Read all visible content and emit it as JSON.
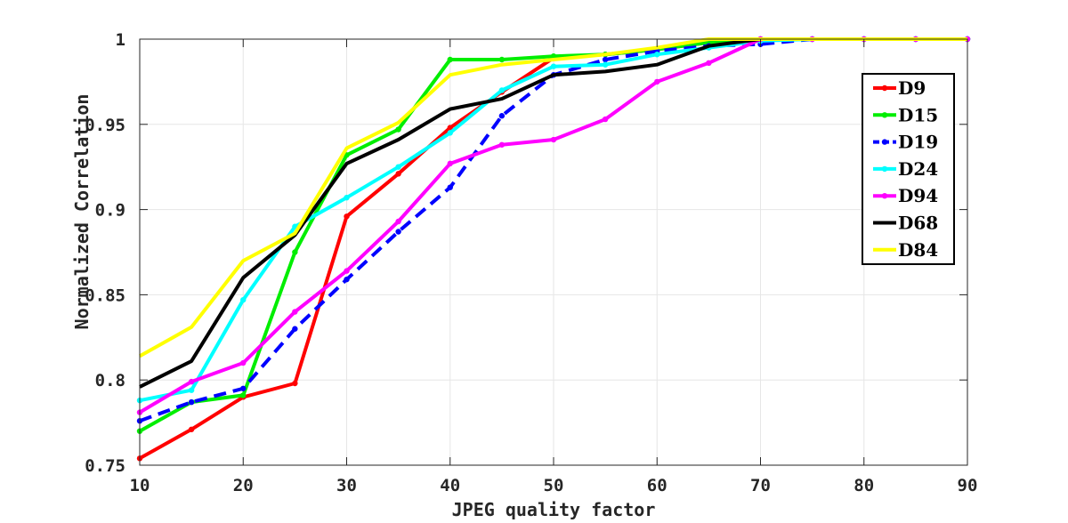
{
  "chart_data": {
    "type": "line",
    "title": "",
    "xlabel": "JPEG quality factor",
    "ylabel": "Normalized Correlation",
    "xlim": [
      10,
      90
    ],
    "ylim": [
      0.75,
      1
    ],
    "xticks": [
      10,
      20,
      30,
      40,
      50,
      60,
      70,
      80,
      90
    ],
    "xtick_labels": [
      "10",
      "20",
      "30",
      "40",
      "50",
      "60",
      "70",
      "80",
      "90"
    ],
    "yticks": [
      0.75,
      0.8,
      0.85,
      0.9,
      0.95,
      1
    ],
    "ytick_labels": [
      "0.75",
      "0.8",
      "0.85",
      "0.9",
      "0.95",
      "1"
    ],
    "grid": true,
    "legend_position": "top-right",
    "x": [
      10,
      15,
      20,
      25,
      30,
      35,
      40,
      45,
      50,
      55,
      60,
      65,
      70,
      75,
      80,
      85,
      90
    ],
    "series": [
      {
        "name": "D9",
        "color": "#ff0000",
        "dash": "solid",
        "markers": true,
        "values": [
          0.754,
          0.771,
          0.79,
          0.798,
          0.896,
          0.921,
          0.948,
          0.969,
          0.989,
          0.991,
          0.994,
          0.998,
          1.0,
          1.0,
          1.0,
          1.0,
          1.0
        ]
      },
      {
        "name": "D15",
        "color": "#00ee00",
        "dash": "solid",
        "markers": true,
        "values": [
          0.77,
          0.787,
          0.791,
          0.875,
          0.932,
          0.947,
          0.988,
          0.988,
          0.99,
          0.991,
          0.994,
          0.998,
          1.0,
          1.0,
          1.0,
          1.0,
          1.0
        ]
      },
      {
        "name": "D19",
        "color": "#0000ff",
        "dash": "dashed",
        "markers": true,
        "values": [
          0.776,
          0.787,
          0.795,
          0.83,
          0.859,
          0.887,
          0.913,
          0.955,
          0.979,
          0.988,
          0.993,
          0.996,
          0.997,
          1.0,
          1.0,
          1.0,
          1.0
        ]
      },
      {
        "name": "D24",
        "color": "#00ffff",
        "dash": "solid",
        "markers": true,
        "values": [
          0.788,
          0.794,
          0.847,
          0.89,
          0.907,
          0.925,
          0.945,
          0.97,
          0.984,
          0.985,
          0.991,
          0.995,
          0.999,
          1.0,
          1.0,
          1.0,
          1.0
        ]
      },
      {
        "name": "D94",
        "color": "#ff00ff",
        "dash": "solid",
        "markers": true,
        "values": [
          0.781,
          0.799,
          0.81,
          0.84,
          0.864,
          0.893,
          0.927,
          0.938,
          0.941,
          0.953,
          0.975,
          0.986,
          1.0,
          1.0,
          1.0,
          1.0,
          1.0
        ]
      },
      {
        "name": "D68",
        "color": "#000000",
        "dash": "solid",
        "markers": false,
        "values": [
          0.796,
          0.811,
          0.86,
          0.885,
          0.927,
          0.941,
          0.959,
          0.965,
          0.979,
          0.981,
          0.985,
          0.996,
          1.0,
          1.0,
          1.0,
          1.0,
          1.0
        ]
      },
      {
        "name": "D84",
        "color": "#ffff00",
        "dash": "solid",
        "markers": false,
        "values": [
          0.814,
          0.831,
          0.87,
          0.886,
          0.936,
          0.951,
          0.979,
          0.985,
          0.988,
          0.991,
          0.995,
          1.0,
          1.0,
          1.0,
          1.0,
          1.0,
          1.0
        ]
      }
    ]
  }
}
